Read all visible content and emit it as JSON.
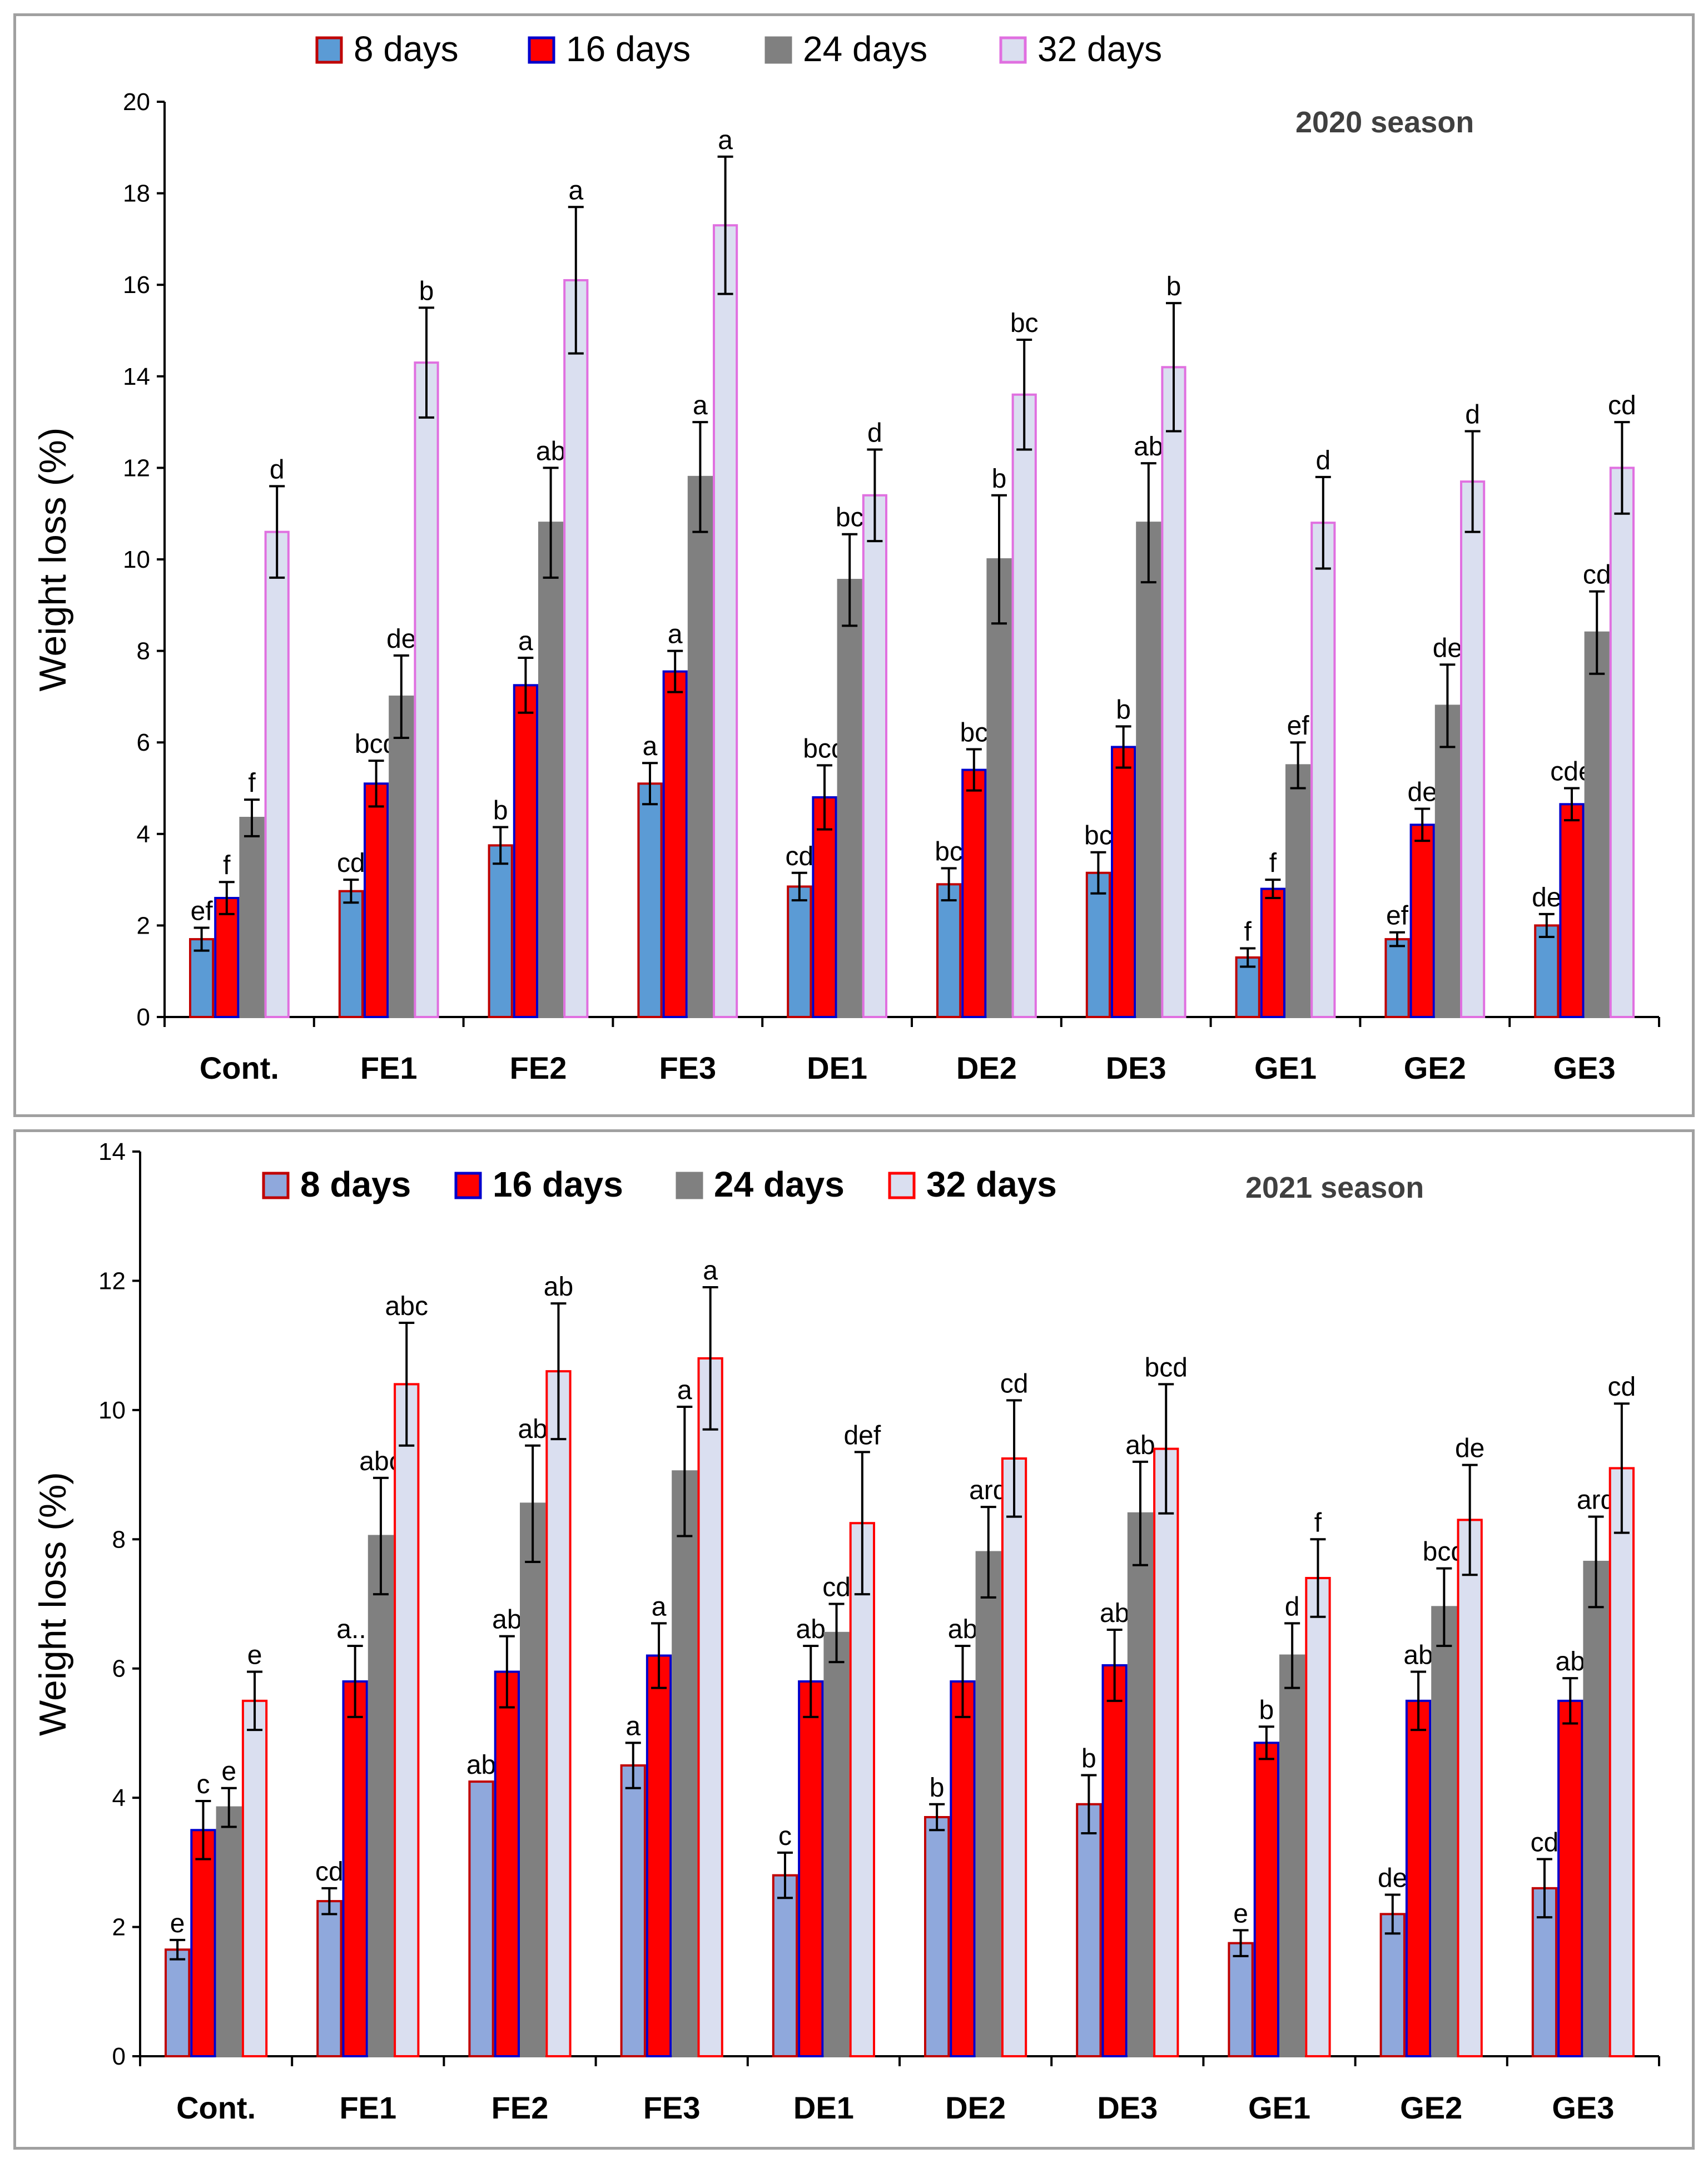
{
  "colors": {
    "c2020": [
      "#5b9bd5",
      "#ff0000",
      "#808080",
      "#dadff0"
    ],
    "s2020": [
      "#c00000",
      "#0000cc",
      "#808080",
      "#e070e0"
    ],
    "c2021": [
      "#8fa8dc",
      "#ff0000",
      "#808080",
      "#dadff0"
    ],
    "s2021": [
      "#c00000",
      "#0000cc",
      "#808080",
      "#ff0000"
    ]
  },
  "chart_data": [
    {
      "type": "bar",
      "title": "2020 season",
      "xlabel": "",
      "ylabel": "Weight loss (%)",
      "ylim": [
        0,
        20
      ],
      "yticks": [
        "0",
        "2",
        "4",
        "6",
        "8",
        "10",
        "12",
        "14",
        "16",
        "18",
        "20"
      ],
      "categories": [
        "Cont.",
        "FE1",
        "FE2",
        "FE3",
        "DE1",
        "DE2",
        "DE3",
        "GE1",
        "GE2",
        "GE3"
      ],
      "legend": [
        "8 days",
        "16 days",
        "24 days",
        "32 days"
      ],
      "series": [
        {
          "name": "8 days",
          "values": [
            1.7,
            2.75,
            3.75,
            5.1,
            2.85,
            2.9,
            3.15,
            1.3,
            1.7,
            2.0
          ],
          "errors": [
            0.25,
            0.25,
            0.4,
            0.45,
            0.3,
            0.35,
            0.45,
            0.2,
            0.15,
            0.25
          ],
          "letters": [
            "ef",
            "cd",
            "b",
            "a",
            "cd",
            "bc",
            "bc",
            "f",
            "ef",
            "de"
          ]
        },
        {
          "name": "16 days",
          "values": [
            2.6,
            5.1,
            7.25,
            7.55,
            4.8,
            5.4,
            5.9,
            2.8,
            4.2,
            4.65
          ],
          "errors": [
            0.35,
            0.5,
            0.6,
            0.45,
            0.7,
            0.45,
            0.45,
            0.2,
            0.35,
            0.35
          ],
          "letters": [
            "f",
            "bcd",
            "a",
            "a",
            "bcd",
            "bc",
            "b",
            "f",
            "de",
            "cde"
          ]
        },
        {
          "name": "24 days",
          "values": [
            4.35,
            7.0,
            10.8,
            11.8,
            9.55,
            10.0,
            10.8,
            5.5,
            6.8,
            8.4
          ],
          "errors": [
            0.4,
            0.9,
            1.2,
            1.2,
            1.0,
            1.4,
            1.3,
            0.5,
            0.9,
            0.9
          ],
          "letters": [
            "f",
            "de",
            "ab",
            "a",
            "bc",
            "b",
            "ab",
            "ef",
            "de",
            "cd"
          ]
        },
        {
          "name": "32 days",
          "values": [
            10.6,
            14.3,
            16.1,
            17.3,
            11.4,
            13.6,
            14.2,
            10.8,
            11.7,
            12.0
          ],
          "errors": [
            1.0,
            1.2,
            1.6,
            1.5,
            1.0,
            1.2,
            1.4,
            1.0,
            1.1,
            1.0
          ],
          "letters": [
            "d",
            "b",
            "a",
            "a",
            "d",
            "bc",
            "b",
            "d",
            "d",
            "cd"
          ]
        }
      ]
    },
    {
      "type": "bar",
      "title": "2021 season",
      "xlabel": "",
      "ylabel": "Weight loss (%)",
      "ylim": [
        0,
        14
      ],
      "yticks": [
        "0",
        "2",
        "4",
        "6",
        "8",
        "10",
        "12",
        "14"
      ],
      "categories": [
        "Cont.",
        "FE1",
        "FE2",
        "FE3",
        "DE1",
        "DE2",
        "DE3",
        "GE1",
        "GE2",
        "GE3"
      ],
      "legend": [
        "8 days",
        "16 days",
        "24 days",
        "32 days"
      ],
      "series": [
        {
          "name": "8 days",
          "values": [
            1.65,
            2.4,
            4.25,
            4.5,
            2.8,
            3.7,
            3.9,
            1.75,
            2.2,
            2.6
          ],
          "errors": [
            0.15,
            0.2,
            0.0,
            0.35,
            0.35,
            0.2,
            0.45,
            0.2,
            0.3,
            0.45
          ],
          "letters": [
            "e",
            "cd",
            "ab",
            "a",
            "c",
            "b",
            "b",
            "e",
            "de",
            "cd"
          ]
        },
        {
          "name": "16 days",
          "values": [
            3.5,
            5.8,
            5.95,
            6.2,
            5.8,
            5.8,
            6.05,
            4.85,
            5.5,
            5.5
          ],
          "errors": [
            0.45,
            0.55,
            0.55,
            0.5,
            0.55,
            0.55,
            0.55,
            0.25,
            0.45,
            0.35
          ],
          "letters": [
            "c",
            "a...",
            "ab",
            "a",
            "ab",
            "ab",
            "ab",
            "b",
            "ab",
            "ab"
          ]
        },
        {
          "name": "24 days",
          "values": [
            3.85,
            8.05,
            8.55,
            9.05,
            6.55,
            7.8,
            8.4,
            6.2,
            6.95,
            7.65
          ],
          "errors": [
            0.3,
            0.9,
            0.9,
            1.0,
            0.45,
            0.7,
            0.8,
            0.5,
            0.6,
            0.7
          ],
          "letters": [
            "e",
            "abc",
            "ab",
            "a",
            "cd",
            "ard",
            "ab",
            "d",
            "bcd",
            "ard"
          ]
        },
        {
          "name": "32 days",
          "values": [
            5.5,
            10.4,
            10.6,
            10.8,
            8.25,
            9.25,
            9.4,
            7.4,
            8.3,
            9.1
          ],
          "errors": [
            0.45,
            0.95,
            1.05,
            1.1,
            1.1,
            0.9,
            1.0,
            0.6,
            0.85,
            1.0
          ],
          "letters": [
            "e",
            "abc",
            "ab",
            "a",
            "def",
            "cd",
            "bcd",
            "f",
            "de",
            "cd"
          ]
        }
      ]
    }
  ]
}
